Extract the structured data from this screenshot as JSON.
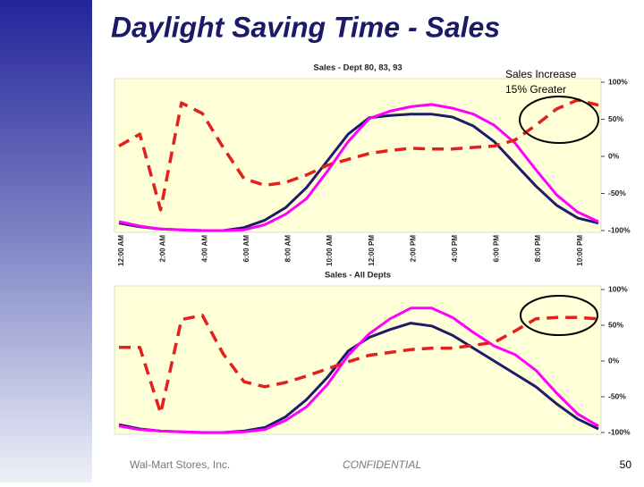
{
  "title": "Daylight Saving Time - Sales",
  "footer": {
    "left": "Wal-Mart Stores, Inc.",
    "center": "CONFIDENTIAL",
    "page": "50"
  },
  "chart_data": [
    {
      "type": "line",
      "title": "Sales - Dept 80, 83, 93",
      "annotation": [
        "Sales Increase",
        "15% Greater"
      ],
      "categories": [
        "12:00 AM",
        null,
        "2:00 AM",
        null,
        "4:00 AM",
        null,
        "6:00 AM",
        null,
        "8:00 AM",
        null,
        "10:00 AM",
        null,
        "12:00 PM",
        null,
        "2:00 PM",
        null,
        "4:00 PM",
        null,
        "6:00 PM",
        null,
        "8:00 PM",
        null,
        "10:00 PM",
        null
      ],
      "y_axis_position": "right",
      "ylim": [
        -100,
        100
      ],
      "yticks": [
        {
          "value": 100,
          "label": "100%"
        },
        {
          "value": 50,
          "label": "50%"
        },
        {
          "value": 0,
          "label": "0%"
        },
        {
          "value": -50,
          "label": "-50%"
        },
        {
          "value": -100,
          "label": "-100%"
        }
      ],
      "series": [
        {
          "name": "Navy",
          "color": "#1c1c6b",
          "dashed": false,
          "values": [
            -90,
            -95,
            -98,
            -99,
            -100,
            -100,
            -96,
            -86,
            -69,
            -42,
            -6,
            30,
            52,
            55,
            57,
            57,
            53,
            41,
            20,
            -10,
            -40,
            -66,
            -83,
            -90
          ]
        },
        {
          "name": "Magenta",
          "color": "#ff00ff",
          "dashed": false,
          "values": [
            -88,
            -94,
            -98,
            -99,
            -100,
            -100,
            -99,
            -92,
            -78,
            -57,
            -20,
            20,
            51,
            61,
            67,
            70,
            65,
            57,
            42,
            18,
            -18,
            -52,
            -75,
            -88
          ]
        },
        {
          "name": "Red",
          "color": "#e3201b",
          "dashed": true,
          "values": [
            14,
            30,
            -72,
            72,
            58,
            12,
            -30,
            -39,
            -35,
            -25,
            -12,
            -4,
            4,
            8,
            11,
            10,
            10,
            12,
            14,
            22,
            42,
            64,
            76,
            69
          ]
        }
      ]
    },
    {
      "type": "line",
      "title": "Sales - All Depts",
      "y_axis_position": "right",
      "ylim": [
        -100,
        100
      ],
      "yticks": [
        {
          "value": 100,
          "label": "100%"
        },
        {
          "value": 50,
          "label": "50%"
        },
        {
          "value": 0,
          "label": "0%"
        },
        {
          "value": -50,
          "label": "-50%"
        },
        {
          "value": -100,
          "label": "-100%"
        }
      ],
      "series": [
        {
          "name": "Navy",
          "color": "#1c1c6b",
          "dashed": false,
          "values": [
            -89,
            -95,
            -98,
            -99,
            -100,
            -100,
            -98,
            -93,
            -78,
            -54,
            -23,
            14,
            33,
            44,
            53,
            49,
            36,
            18,
            0,
            -18,
            -36,
            -60,
            -81,
            -95
          ]
        },
        {
          "name": "Magenta",
          "color": "#ff00ff",
          "dashed": false,
          "values": [
            -91,
            -96,
            -98,
            -99,
            -100,
            -100,
            -99,
            -96,
            -83,
            -64,
            -33,
            8,
            38,
            59,
            74,
            74,
            61,
            40,
            21,
            9,
            -13,
            -45,
            -74,
            -91
          ]
        },
        {
          "name": "Red",
          "color": "#e3201b",
          "dashed": true,
          "values": [
            19,
            19,
            -73,
            58,
            64,
            10,
            -29,
            -36,
            -30,
            -21,
            -11,
            -1,
            8,
            12,
            16,
            18,
            18,
            22,
            26,
            42,
            59,
            61,
            61,
            59
          ]
        }
      ]
    }
  ]
}
